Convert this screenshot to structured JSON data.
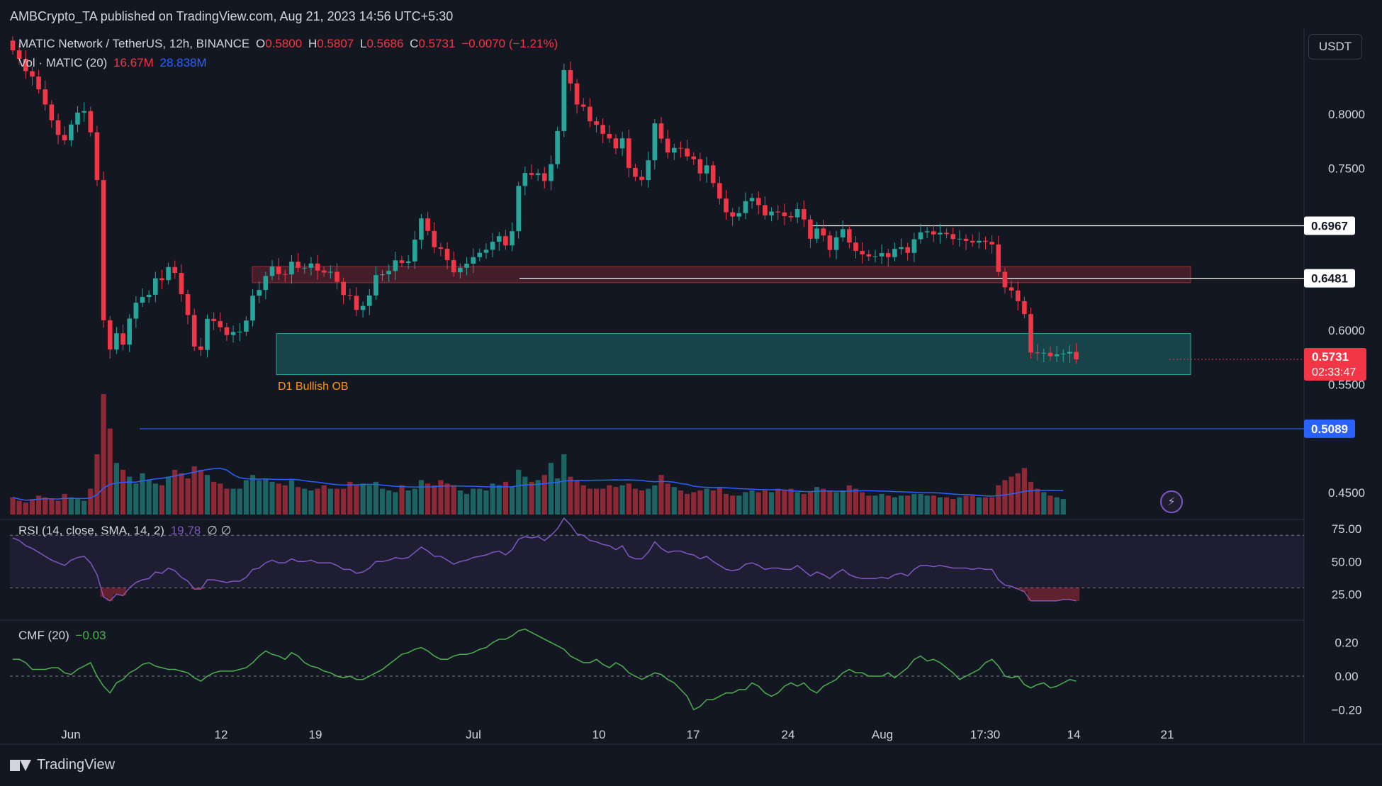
{
  "header": {
    "publisher": "AMBCrypto_TA published on TradingView.com, Aug 21, 2023 14:56 UTC+5:30"
  },
  "legend": {
    "symbol": "MATIC Network / TetherUS, 12h, BINANCE",
    "o_label": "O",
    "o_value": "0.5800",
    "h_label": "H",
    "h_value": "0.5807",
    "l_label": "L",
    "l_value": "0.5686",
    "c_label": "C",
    "c_value": "0.5731",
    "change": "−0.0070 (−1.21%)",
    "vol_label": "Vol · MATIC (20)",
    "vol_value": "16.67M",
    "vol_ma": "28.838M",
    "rsi_label": "RSI (14, close, SMA, 14, 2)",
    "rsi_value": "19.78",
    "rsi_extra": "∅ ∅",
    "cmf_label": "CMF (20)",
    "cmf_value": "−0.03"
  },
  "toolbar": {
    "currency": "USDT"
  },
  "footer": {
    "brand": "TradingView"
  },
  "colors": {
    "background": "#131722",
    "up": "#26a69a",
    "down": "#f23645",
    "volume_ma": "#2962ff",
    "rsi": "#7e57c2",
    "cmf": "#4caf50",
    "ob_zone": "#26a69a",
    "supply_zone": "#f23645"
  },
  "chart_data": {
    "type": "candlestick",
    "price_axis": {
      "ticks": [
        "0.8000",
        "0.7500",
        "0.6967",
        "0.6481",
        "0.6000",
        "0.5731",
        "0.5500",
        "0.5089",
        "0.4500"
      ],
      "range": [
        0.43,
        0.87
      ]
    },
    "x_axis": {
      "ticks": [
        "Jun",
        "12",
        "19",
        "Jul",
        "10",
        "17",
        "24",
        "Aug",
        "17:30",
        "14",
        "21"
      ]
    },
    "last_price": {
      "value": "0.5731",
      "countdown": "02:33:47"
    },
    "level_labels": [
      "0.6967",
      "0.6481",
      "0.5089"
    ],
    "annotations": {
      "bullish_ob_label": "D1 Bullish OB",
      "bullish_ob_zone": [
        0.559,
        0.597
      ],
      "supply_zone": [
        0.644,
        0.659
      ]
    },
    "candles": {
      "open": [
        0.868,
        0.859,
        0.8511,
        0.8397,
        0.8348,
        0.8229,
        0.8089,
        0.7943,
        0.7807,
        0.7758,
        0.7904,
        0.8014,
        0.8028,
        0.7832,
        0.739,
        0.6093,
        0.5822,
        0.5972,
        0.5867,
        0.6108,
        0.6255,
        0.6308,
        0.6329,
        0.6481,
        0.6464,
        0.6585,
        0.6531,
        0.6334,
        0.6141,
        0.585,
        0.5818,
        0.6106,
        0.6085,
        0.6028,
        0.5956,
        0.5984,
        0.5987,
        0.609,
        0.632,
        0.6373,
        0.6502,
        0.6588,
        0.652,
        0.6517,
        0.6634,
        0.6577,
        0.6578,
        0.6618,
        0.6553,
        0.6534,
        0.6541,
        0.6448,
        0.6326,
        0.6319,
        0.6188,
        0.6225,
        0.6322,
        0.651,
        0.6518,
        0.6549,
        0.6647,
        0.6623,
        0.6637,
        0.6838,
        0.7035,
        0.6919,
        0.6768,
        0.6754,
        0.6649,
        0.6536,
        0.6578,
        0.6616,
        0.6677,
        0.6717,
        0.6745,
        0.6819,
        0.6871,
        0.6785,
        0.6917,
        0.7335,
        0.7455,
        0.7437,
        0.7452,
        0.7381,
        0.7537,
        0.7843,
        0.8407,
        0.8284,
        0.8089,
        0.8068,
        0.7934,
        0.79,
        0.7817,
        0.7775,
        0.7683,
        0.7776,
        0.7502,
        0.742,
        0.739,
        0.7573,
        0.7914,
        0.7773,
        0.7645,
        0.7687,
        0.7682,
        0.7608,
        0.7583,
        0.7451,
        0.7526,
        0.7362,
        0.7218,
        0.7092,
        0.7052,
        0.7084,
        0.7195,
        0.7224,
        0.7158,
        0.7063,
        0.7098,
        0.709,
        0.7056,
        0.7045,
        0.7121,
        0.7025,
        0.6847,
        0.6942,
        0.6877,
        0.6743,
        0.686,
        0.6936,
        0.6812,
        0.6734,
        0.6703,
        0.6683,
        0.6684,
        0.6714,
        0.6677,
        0.6753,
        0.6769,
        0.6716,
        0.6842,
        0.6906,
        0.6916,
        0.6887,
        0.6902,
        0.689,
        0.6844,
        0.6847,
        0.6827,
        0.6812,
        0.6828,
        0.6818,
        0.6794,
        0.654,
        0.6397,
        0.6368,
        0.6269,
        0.615,
        0.5794,
        0.579,
        0.5791,
        0.576,
        0.5777,
        0.5784,
        0.58
      ],
      "close": [
        0.859,
        0.8511,
        0.8397,
        0.8348,
        0.8229,
        0.8089,
        0.7943,
        0.7807,
        0.7758,
        0.7904,
        0.8014,
        0.8028,
        0.7832,
        0.739,
        0.6093,
        0.5822,
        0.5972,
        0.5867,
        0.6108,
        0.6255,
        0.6308,
        0.6329,
        0.6481,
        0.6464,
        0.6585,
        0.6531,
        0.6334,
        0.6141,
        0.585,
        0.5818,
        0.6106,
        0.6085,
        0.6028,
        0.5956,
        0.5984,
        0.5987,
        0.609,
        0.632,
        0.6373,
        0.6502,
        0.6588,
        0.652,
        0.6517,
        0.6634,
        0.6577,
        0.6578,
        0.6618,
        0.6553,
        0.6534,
        0.6541,
        0.6448,
        0.6326,
        0.6319,
        0.6188,
        0.6225,
        0.6322,
        0.651,
        0.6518,
        0.6549,
        0.6647,
        0.6623,
        0.6637,
        0.6838,
        0.7035,
        0.6919,
        0.6768,
        0.6754,
        0.6649,
        0.6536,
        0.6578,
        0.6616,
        0.6677,
        0.6717,
        0.6745,
        0.6819,
        0.6871,
        0.6785,
        0.6917,
        0.7335,
        0.7455,
        0.7437,
        0.7452,
        0.7381,
        0.7537,
        0.7843,
        0.8407,
        0.8284,
        0.8089,
        0.8068,
        0.7934,
        0.79,
        0.7817,
        0.7775,
        0.7683,
        0.7776,
        0.7502,
        0.742,
        0.739,
        0.7573,
        0.7914,
        0.7773,
        0.7645,
        0.7687,
        0.7682,
        0.7608,
        0.7583,
        0.7451,
        0.7526,
        0.7362,
        0.7218,
        0.7092,
        0.7052,
        0.7084,
        0.7195,
        0.7224,
        0.7158,
        0.7063,
        0.7098,
        0.709,
        0.7056,
        0.7045,
        0.7121,
        0.7025,
        0.6847,
        0.6942,
        0.6877,
        0.6743,
        0.686,
        0.6936,
        0.6812,
        0.6734,
        0.6703,
        0.6683,
        0.6684,
        0.6714,
        0.6677,
        0.6753,
        0.6769,
        0.6716,
        0.6842,
        0.6906,
        0.6916,
        0.6887,
        0.6902,
        0.689,
        0.6844,
        0.6847,
        0.6827,
        0.6812,
        0.6828,
        0.6818,
        0.6794,
        0.654,
        0.6397,
        0.6368,
        0.6269,
        0.615,
        0.5794,
        0.579,
        0.5791,
        0.576,
        0.5777,
        0.5784,
        0.58,
        0.5731
      ],
      "volume_m": [
        20,
        16,
        14,
        18,
        22,
        20,
        18,
        16,
        24,
        20,
        18,
        16,
        30,
        70,
        140,
        100,
        60,
        52,
        44,
        36,
        48,
        40,
        36,
        34,
        44,
        52,
        48,
        42,
        56,
        52,
        46,
        38,
        36,
        30,
        30,
        30,
        40,
        46,
        40,
        42,
        38,
        36,
        34,
        40,
        32,
        30,
        28,
        30,
        34,
        30,
        30,
        30,
        38,
        34,
        36,
        34,
        38,
        30,
        28,
        26,
        34,
        28,
        30,
        40,
        36,
        34,
        40,
        36,
        34,
        28,
        24,
        30,
        30,
        28,
        36,
        34,
        38,
        32,
        52,
        44,
        38,
        40,
        46,
        60,
        42,
        70,
        44,
        40,
        34,
        30,
        30,
        30,
        34,
        32,
        34,
        36,
        30,
        28,
        30,
        34,
        46,
        36,
        32,
        28,
        24,
        26,
        28,
        30,
        28,
        32,
        24,
        22,
        22,
        26,
        28,
        26,
        28,
        26,
        30,
        28,
        30,
        26,
        24,
        26,
        32,
        30,
        28,
        26,
        28,
        34,
        30,
        26,
        22,
        22,
        24,
        22,
        20,
        22,
        22,
        24,
        24,
        22,
        22,
        20,
        20,
        18,
        20,
        22,
        22,
        20,
        20,
        20,
        34,
        40,
        44,
        48,
        54,
        38,
        30,
        26,
        22,
        20,
        18
      ],
      "rsi": [
        68,
        66,
        62,
        60,
        57,
        54,
        51,
        49,
        47,
        51,
        53,
        54,
        49,
        40,
        23,
        20,
        25,
        24,
        30,
        34,
        36,
        37,
        42,
        41,
        45,
        43,
        38,
        35,
        29,
        29,
        36,
        36,
        35,
        34,
        35,
        35,
        38,
        44,
        45,
        49,
        51,
        49,
        49,
        52,
        50,
        50,
        51,
        49,
        49,
        49,
        47,
        44,
        44,
        41,
        42,
        45,
        50,
        50,
        51,
        53,
        52,
        53,
        57,
        61,
        58,
        54,
        54,
        51,
        48,
        50,
        51,
        53,
        54,
        55,
        57,
        58,
        55,
        59,
        67,
        69,
        68,
        69,
        66,
        70,
        75,
        83,
        78,
        71,
        70,
        66,
        65,
        63,
        62,
        59,
        62,
        54,
        52,
        52,
        57,
        65,
        60,
        57,
        58,
        58,
        56,
        55,
        52,
        54,
        50,
        47,
        44,
        43,
        44,
        48,
        49,
        47,
        44,
        45,
        45,
        44,
        44,
        47,
        43,
        39,
        42,
        40,
        37,
        41,
        44,
        40,
        38,
        37,
        37,
        37,
        38,
        37,
        40,
        41,
        39,
        44,
        47,
        47,
        46,
        47,
        46,
        45,
        45,
        45,
        44,
        45,
        44,
        44,
        36,
        32,
        31,
        29,
        27,
        20,
        20,
        20,
        20,
        20,
        21,
        21,
        20
      ],
      "cmf": [
        0.1,
        0.1,
        0.08,
        0.04,
        0.04,
        0.04,
        0.05,
        0.05,
        0.02,
        0.01,
        0.04,
        0.06,
        0.08,
        0.0,
        -0.06,
        -0.1,
        -0.04,
        -0.02,
        0.02,
        0.04,
        0.07,
        0.08,
        0.06,
        0.05,
        0.04,
        0.04,
        0.03,
        0.02,
        -0.01,
        -0.03,
        0.0,
        0.02,
        0.03,
        0.03,
        0.03,
        0.04,
        0.05,
        0.08,
        0.12,
        0.15,
        0.13,
        0.12,
        0.1,
        0.14,
        0.12,
        0.08,
        0.06,
        0.05,
        0.03,
        0.02,
        0.0,
        -0.01,
        0.0,
        -0.02,
        -0.02,
        0.0,
        0.02,
        0.04,
        0.07,
        0.1,
        0.13,
        0.14,
        0.16,
        0.17,
        0.15,
        0.12,
        0.1,
        0.1,
        0.12,
        0.13,
        0.13,
        0.14,
        0.16,
        0.17,
        0.2,
        0.22,
        0.22,
        0.24,
        0.27,
        0.28,
        0.26,
        0.24,
        0.22,
        0.2,
        0.18,
        0.16,
        0.12,
        0.1,
        0.08,
        0.08,
        0.1,
        0.07,
        0.05,
        0.08,
        0.06,
        0.02,
        0.0,
        -0.02,
        0.0,
        0.02,
        0.01,
        -0.02,
        -0.04,
        -0.08,
        -0.12,
        -0.2,
        -0.18,
        -0.14,
        -0.14,
        -0.12,
        -0.1,
        -0.1,
        -0.08,
        -0.08,
        -0.04,
        -0.06,
        -0.1,
        -0.12,
        -0.1,
        -0.06,
        -0.04,
        -0.06,
        -0.04,
        -0.08,
        -0.1,
        -0.06,
        -0.04,
        -0.02,
        0.02,
        0.04,
        0.02,
        0.02,
        0.0,
        0.0,
        0.0,
        0.02,
        -0.01,
        0.02,
        0.05,
        0.1,
        0.12,
        0.09,
        0.1,
        0.08,
        0.05,
        0.02,
        -0.02,
        0.0,
        0.02,
        0.04,
        0.08,
        0.1,
        0.06,
        0.0,
        -0.01,
        0.0,
        -0.05,
        -0.07,
        -0.05,
        -0.04,
        -0.07,
        -0.06,
        -0.04,
        -0.02,
        -0.03
      ]
    },
    "rsi_axis": {
      "ticks": [
        "75.00",
        "50.00",
        "25.00"
      ]
    },
    "cmf_axis": {
      "ticks": [
        "0.20",
        "0.00",
        "−0.20"
      ]
    }
  }
}
